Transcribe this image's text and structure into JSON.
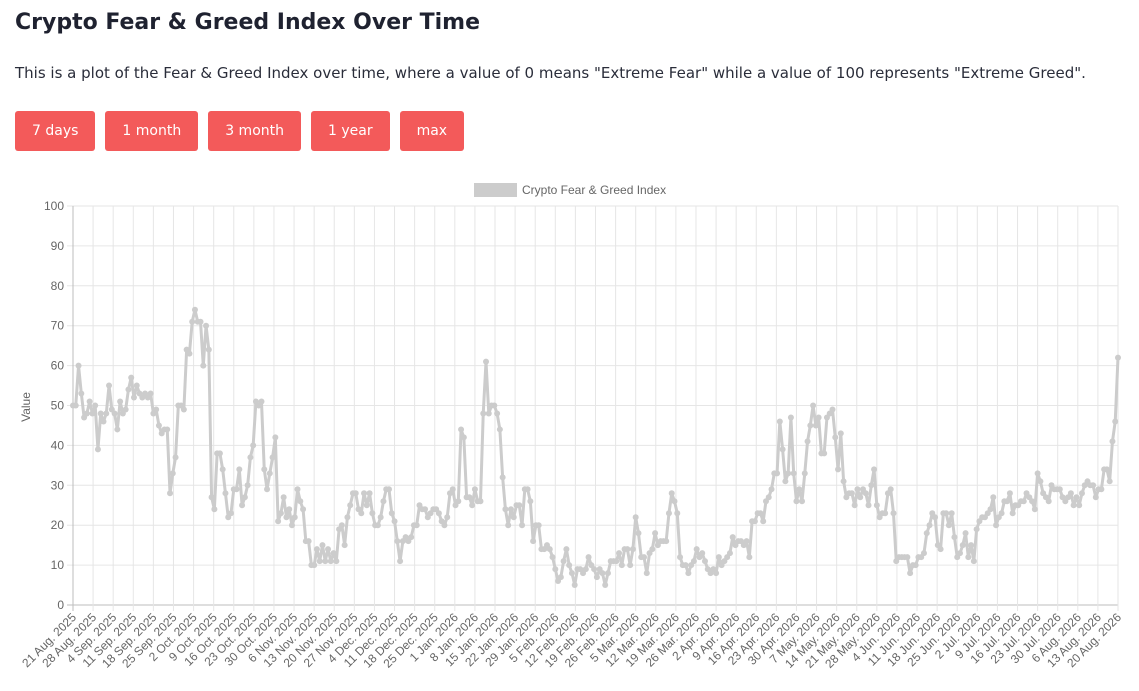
{
  "page": {
    "title": "Crypto Fear & Greed Index Over Time",
    "description": "This is a plot of the Fear & Greed Index over time, where a value of 0 means \"Extreme Fear\" while a value of 100 represents \"Extreme Greed\"."
  },
  "buttons": {
    "days7": "7 days",
    "month1": "1 month",
    "month3": "3 month",
    "year1": "1 year",
    "max": "max"
  },
  "colors": {
    "button_bg": "#f35a5a",
    "series_line": "#cccccc",
    "grid": "#e6e6e6"
  },
  "chart_data": {
    "type": "line",
    "legend": "Crypto Fear & Greed Index",
    "legend_position": "top",
    "ylabel": "Value",
    "ylim": [
      0,
      100
    ],
    "yticks": [
      0,
      10,
      20,
      30,
      40,
      50,
      60,
      70,
      80,
      90,
      100
    ],
    "grid": true,
    "x_start": "21 Aug. 2025",
    "x_end": "20 Aug. 2026",
    "x_tick_labels": [
      "21 Aug. 2025",
      "28 Aug. 2025",
      "4 Sep. 2025",
      "11 Sep. 2025",
      "18 Sep. 2025",
      "25 Sep. 2025",
      "2 Oct. 2025",
      "9 Oct. 2025",
      "16 Oct. 2025",
      "23 Oct. 2025",
      "30 Oct. 2025",
      "6 Nov. 2025",
      "13 Nov. 2025",
      "20 Nov. 2025",
      "27 Nov. 2025",
      "4 Dec. 2025",
      "11 Dec. 2025",
      "18 Dec. 2025",
      "25 Dec. 2025",
      "1 Jan. 2026",
      "8 Jan. 2026",
      "15 Jan. 2026",
      "22 Jan. 2026",
      "29 Jan. 2026",
      "5 Feb. 2026",
      "12 Feb. 2026",
      "19 Feb. 2026",
      "26 Feb. 2026",
      "5 Mar. 2026",
      "12 Mar. 2026",
      "19 Mar. 2026",
      "26 Mar. 2026",
      "2 Apr. 2026",
      "9 Apr. 2026",
      "16 Apr. 2026",
      "23 Apr. 2026",
      "30 Apr. 2026",
      "7 May. 2026",
      "14 May. 2026",
      "21 May. 2026",
      "28 May. 2026",
      "4 Jun. 2026",
      "11 Jun. 2026",
      "18 Jun. 2026",
      "25 Jun. 2026",
      "2 Jul. 2026",
      "9 Jul. 2026",
      "16 Jul. 2026",
      "23 Jul. 2026",
      "30 Jul. 2026",
      "6 Aug. 2026",
      "13 Aug. 2026",
      "20 Aug. 2026"
    ],
    "values": [
      50,
      50,
      60,
      53,
      47,
      48,
      51,
      48,
      50,
      39,
      48,
      46,
      48,
      55,
      49,
      48,
      44,
      51,
      48,
      49,
      54,
      57,
      52,
      55,
      53,
      52,
      53,
      52,
      53,
      48,
      49,
      45,
      43,
      44,
      44,
      28,
      33,
      37,
      50,
      50,
      49,
      64,
      63,
      71,
      74,
      71,
      71,
      60,
      70,
      64,
      27,
      24,
      38,
      38,
      34,
      28,
      22,
      23,
      29,
      29,
      34,
      25,
      27,
      30,
      37,
      40,
      51,
      50,
      51,
      34,
      29,
      33,
      37,
      42,
      21,
      23,
      27,
      22,
      24,
      20,
      22,
      29,
      26,
      24,
      16,
      16,
      10,
      10,
      14,
      11,
      15,
      11,
      14,
      11,
      13,
      11,
      19,
      20,
      15,
      22,
      25,
      28,
      28,
      24,
      23,
      28,
      25,
      28,
      23,
      20,
      20,
      22,
      26,
      29,
      29,
      23,
      21,
      16,
      11,
      16,
      17,
      16,
      17,
      20,
      20,
      25,
      24,
      24,
      22,
      23,
      24,
      24,
      23,
      21,
      20,
      22,
      28,
      29,
      25,
      26,
      44,
      42,
      27,
      27,
      25,
      29,
      26,
      26,
      48,
      61,
      48,
      50,
      50,
      48,
      44,
      32,
      24,
      20,
      24,
      22,
      25,
      25,
      20,
      29,
      29,
      26,
      16,
      20,
      20,
      14,
      14,
      15,
      14,
      12,
      9,
      6,
      7,
      11,
      14,
      10,
      8,
      5,
      9,
      9,
      8,
      9,
      12,
      10,
      9,
      7,
      9,
      8,
      5,
      8,
      11,
      11,
      11,
      13,
      10,
      14,
      14,
      10,
      14,
      22,
      18,
      12,
      12,
      8,
      13,
      14,
      18,
      15,
      16,
      16,
      16,
      23,
      28,
      26,
      23,
      12,
      10,
      10,
      8,
      10,
      11,
      14,
      12,
      13,
      11,
      9,
      8,
      9,
      8,
      12,
      10,
      11,
      12,
      13,
      17,
      15,
      16,
      16,
      15,
      16,
      12,
      21,
      21,
      23,
      23,
      21,
      26,
      27,
      29,
      33,
      33,
      46,
      39,
      31,
      33,
      47,
      33,
      26,
      29,
      26,
      33,
      41,
      45,
      50,
      45,
      47,
      38,
      38,
      47,
      48,
      49,
      42,
      34,
      43,
      31,
      27,
      28,
      28,
      25,
      29,
      27,
      29,
      28,
      25,
      30,
      34,
      25,
      22,
      23,
      23,
      28,
      29,
      23,
      11,
      12,
      12,
      12,
      12,
      8,
      10,
      10,
      12,
      12,
      13,
      18,
      20,
      23,
      22,
      15,
      14,
      23,
      23,
      20,
      23,
      17,
      12,
      13,
      15,
      18,
      12,
      15,
      11,
      19,
      21,
      22,
      22,
      23,
      24,
      27,
      20,
      22,
      23,
      26,
      26,
      28,
      23,
      25,
      25,
      26,
      26,
      28,
      27,
      26,
      24,
      33,
      31,
      28,
      27,
      26,
      30,
      29,
      29,
      29,
      27,
      26,
      27,
      28,
      25,
      27,
      25,
      28,
      30,
      31,
      30,
      30,
      27,
      29,
      29,
      34,
      34,
      31,
      41,
      46,
      62
    ]
  }
}
